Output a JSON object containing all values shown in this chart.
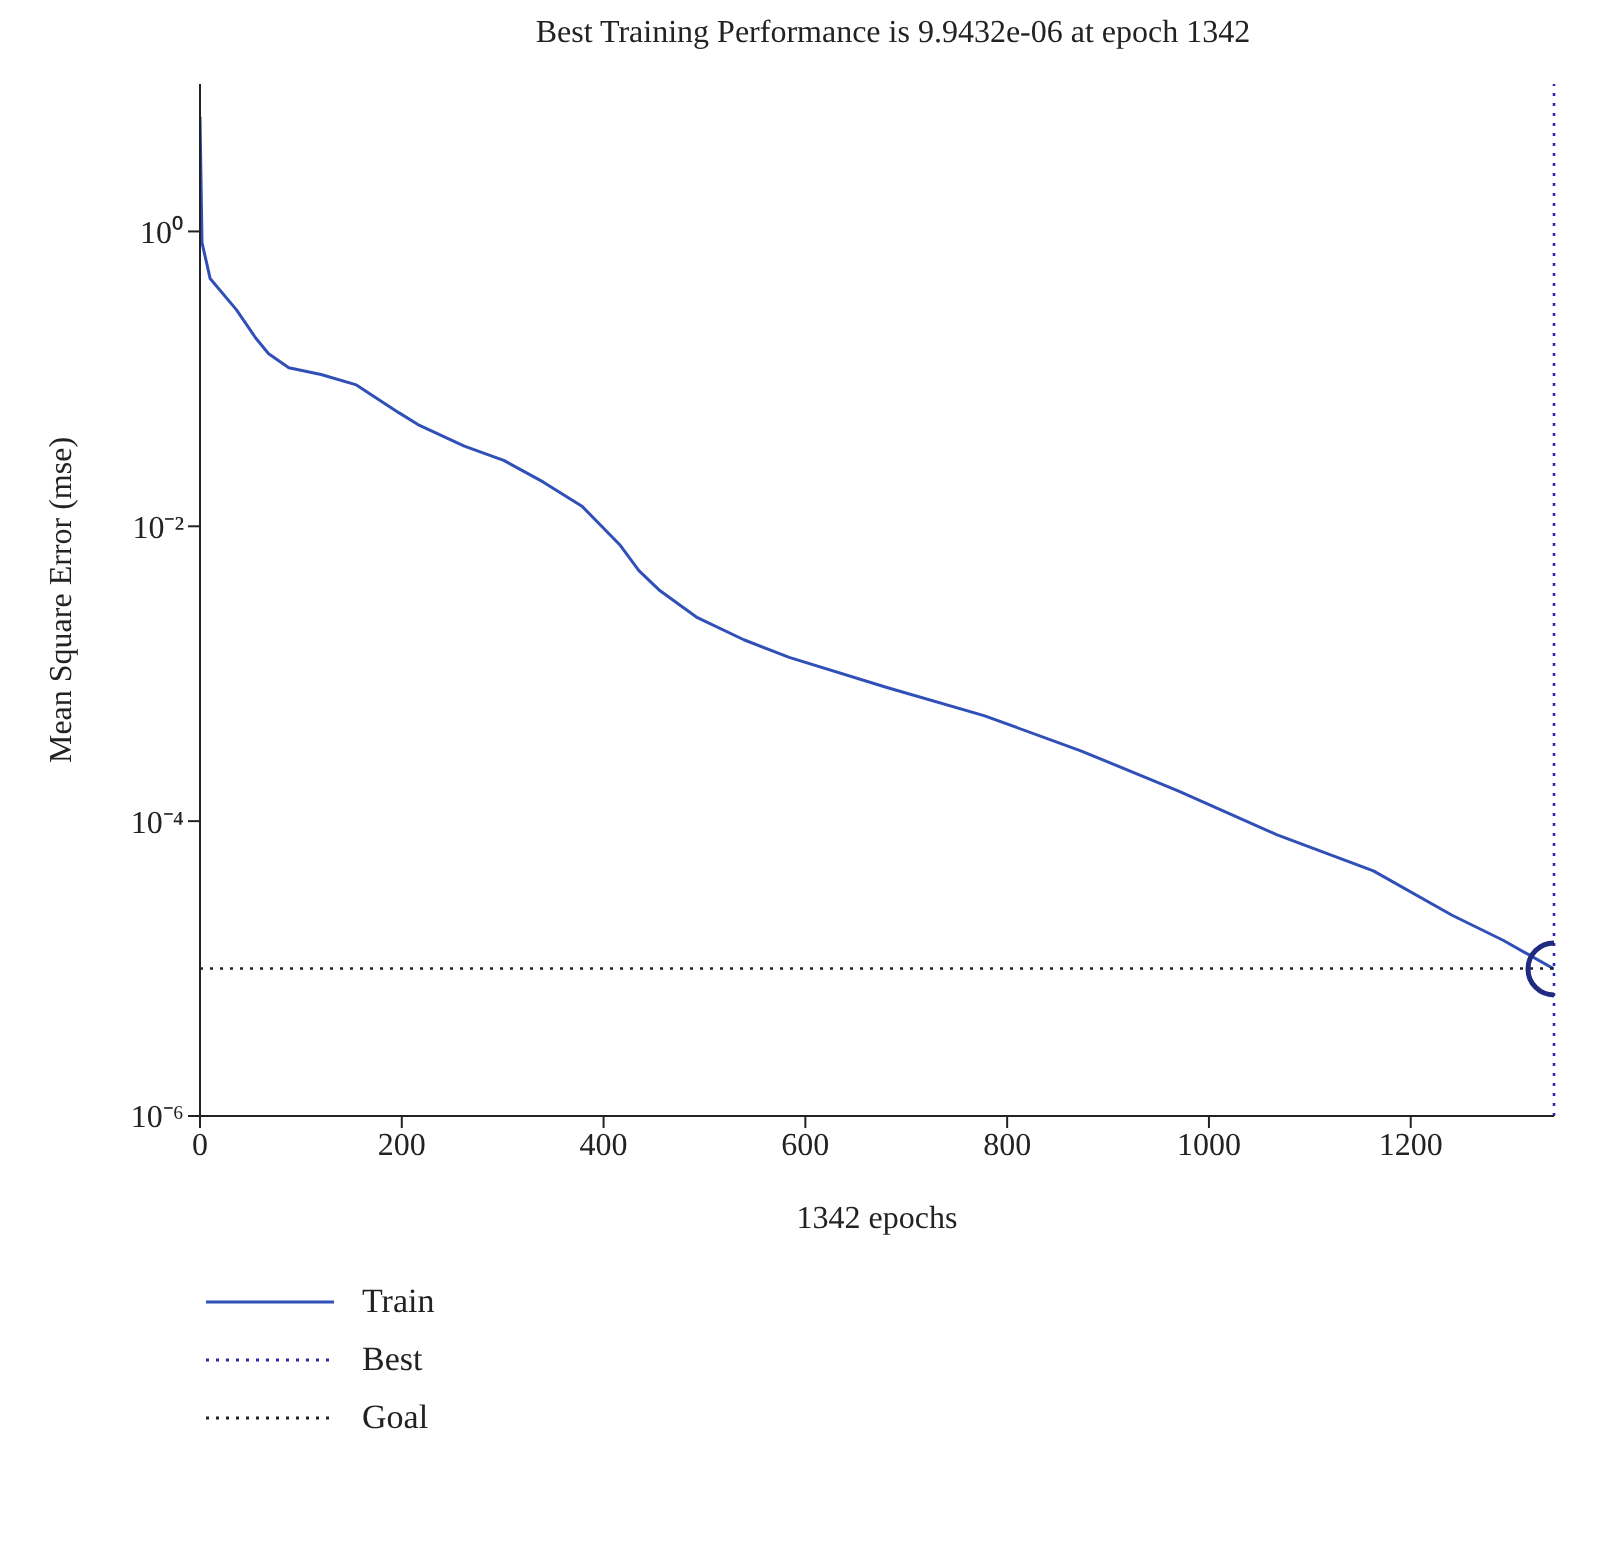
{
  "chart_data": {
    "type": "line",
    "title": "Best Training Performance is 9.9432e-06 at epoch 1342",
    "xlabel": "1342 epochs",
    "ylabel": "Mean Square Error (mse)",
    "log": "y",
    "xlim": [
      0,
      1342
    ],
    "xticks": [
      0,
      200,
      400,
      600,
      800,
      1000,
      1200
    ],
    "ylim": [
      1e-06,
      10
    ],
    "yticks": [
      {
        "value": 1,
        "label": "10⁰"
      },
      {
        "value": 0.01,
        "label": "10⁻²"
      },
      {
        "value": 0.0001,
        "label": "10⁻⁴"
      },
      {
        "value": 1e-06,
        "label": "10⁻⁶"
      }
    ],
    "grid": false,
    "legend": "bottom left",
    "series": [
      {
        "name": "Train",
        "color": "#3050b8",
        "marker": "none",
        "line_style": "solid",
        "x": [
          0,
          2,
          10,
          36,
          55,
          68,
          88,
          120,
          155,
          197,
          216,
          262,
          301,
          340,
          379,
          416,
          435,
          455,
          493,
          539,
          584,
          680,
          777,
          873,
          970,
          1067,
          1163,
          1241,
          1292,
          1342
        ],
        "values": [
          6.0,
          0.84,
          0.48,
          0.295,
          0.19,
          0.148,
          0.119,
          0.107,
          0.091,
          0.059,
          0.049,
          0.035,
          0.028,
          0.02,
          0.0136,
          0.0075,
          0.005,
          0.0037,
          0.0024,
          0.0017,
          0.00129,
          0.00081,
          0.00052,
          0.0003,
          0.00016,
          8.1e-05,
          4.6e-05,
          2.3e-05,
          1.55e-05,
          9.9432e-06
        ]
      },
      {
        "type": "scatter",
        "color": "#1f2a80",
        "marker": "circle",
        "x": [
          1342
        ],
        "values": [
          9.9432e-06
        ]
      }
    ],
    "ref_lines": [
      {
        "axis": "x",
        "value": 1342,
        "label": "Best",
        "color": "#2a2ab0",
        "line_style": "dotted"
      },
      {
        "axis": "y",
        "value": 1e-05,
        "label": "Goal",
        "color": "#222222",
        "line_style": "dotted"
      }
    ]
  }
}
